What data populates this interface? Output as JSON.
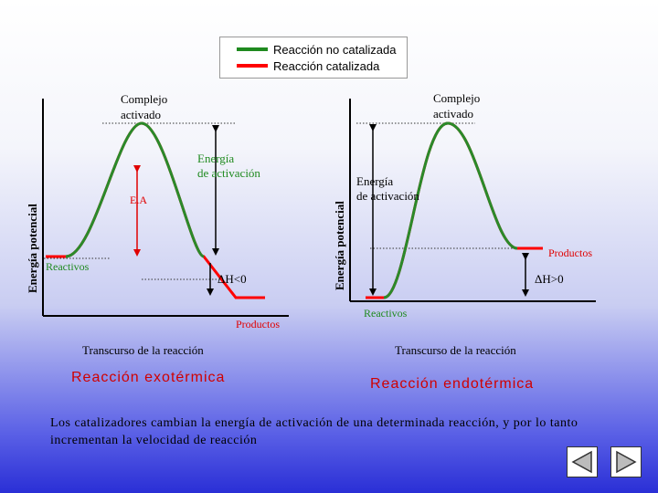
{
  "legend": {
    "uncatalyzed": "Reacción no catalizada",
    "catalyzed": "Reacción catalizada",
    "uncatalyzed_color": "#1f8a1f",
    "catalyzed_color": "#ff0000"
  },
  "left_diagram": {
    "y_label": "Energía potencial",
    "complex_label_line1": "Complejo",
    "complex_label_line2": "activado",
    "activation_label_line1": "Energía",
    "activation_label_line2": "de activación",
    "ea_label": "E.A",
    "reactants": "Reactivos",
    "products": "Productos",
    "delta_h": "H<0",
    "delta_symbol": "Δ",
    "x_label": "Transcurso de la reacción",
    "title": "Reacción exotérmica"
  },
  "right_diagram": {
    "y_label": "Energía potencial",
    "complex_label_line1": "Complejo",
    "complex_label_line2": "activado",
    "activation_label_line1": "Energía",
    "activation_label_line2": "de activación",
    "reactants": "Reactivos",
    "products": "Productos",
    "delta_h": "H>0",
    "delta_symbol": "Δ",
    "x_label": "Transcurso de la reacción",
    "title": "Reacción endotérmica"
  },
  "note": "Los catalizadores cambian la energía de activación de una determinada reacción, y por lo tanto incrementan la velocidad de reacción",
  "nav": {
    "prev_icon": "previous-slide-icon",
    "next_icon": "next-slide-icon"
  }
}
